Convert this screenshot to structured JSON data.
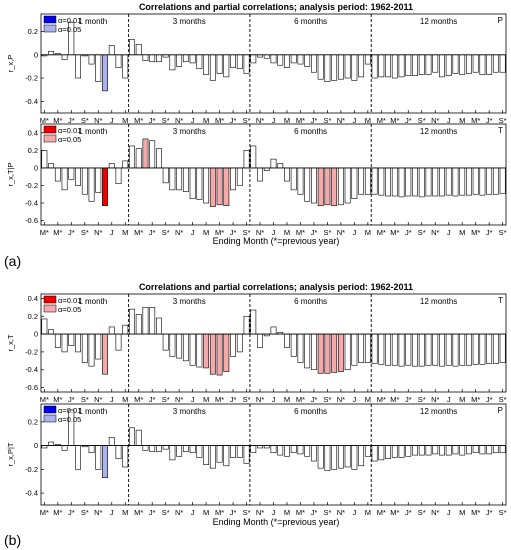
{
  "figure": {
    "subfigures": [
      {
        "label": "(a)",
        "title": "Correlations and partial correlations; analysis period: 1962-2011",
        "xlabel": "Ending Month (*=previous year)"
      },
      {
        "label": "(b)",
        "title": "Correlations and partial correlations; analysis period: 1962-2011",
        "xlabel": "Ending Month (*=previous year)"
      }
    ]
  },
  "colors": {
    "blue_strong": "#0000ee",
    "blue_light": "#aab2ee",
    "red_strong": "#ee0000",
    "red_light": "#f4aaaa",
    "bar_plain": "#ffffff",
    "bar_edge": "#000000"
  },
  "chart_data": [
    {
      "type": "bar",
      "panel": "a-top",
      "title": "Correlations and partial correlations; analysis period: 1962-2011",
      "ylabel": "r_x,P",
      "corner_label": "P",
      "legend": [
        {
          "label": "α=0.01",
          "color": "#0000ee"
        },
        {
          "label": "α=0.05",
          "color": "#aab2ee"
        }
      ],
      "ylim": [
        -0.5,
        0.35
      ],
      "yticks": [
        -0.4,
        -0.2,
        0,
        0.2
      ],
      "ytick_labels": [
        "-0.4",
        "-0.2",
        "0",
        "0.2"
      ],
      "xtick_labels": [
        "M*",
        "M*",
        "J*",
        "S*",
        "N*",
        "J",
        "M",
        "M*",
        "J*",
        "S*",
        "N*",
        "J",
        "M",
        "M*",
        "J*",
        "S*",
        "N*",
        "J",
        "M",
        "M*",
        "J*",
        "S*",
        "N*",
        "J",
        "M"
      ],
      "groups": [
        "1 month",
        "3 months",
        "6 months",
        "12 months"
      ],
      "values": [
        -0.01,
        0.03,
        0.01,
        -0.04,
        0.28,
        -0.2,
        -0.01,
        -0.08,
        -0.23,
        -0.31,
        0.08,
        -0.11,
        -0.2,
        0.13,
        0.09,
        -0.05,
        -0.06,
        -0.06,
        -0.02,
        -0.13,
        -0.1,
        -0.06,
        -0.07,
        -0.12,
        -0.17,
        -0.22,
        -0.16,
        -0.19,
        -0.11,
        -0.12,
        -0.16,
        -0.07,
        -0.02,
        -0.03,
        -0.07,
        -0.09,
        -0.11,
        -0.07,
        -0.08,
        -0.1,
        -0.15,
        -0.21,
        -0.23,
        -0.22,
        -0.21,
        -0.2,
        -0.22,
        -0.19,
        -0.08,
        -0.2,
        -0.19,
        -0.19,
        -0.2,
        -0.19,
        -0.18,
        -0.18,
        -0.17,
        -0.17,
        -0.15,
        -0.19,
        -0.18,
        -0.16,
        -0.17,
        -0.16,
        -0.15,
        -0.17,
        -0.17,
        -0.15,
        -0.15
      ],
      "significance": [
        0,
        0,
        0,
        0,
        0,
        0,
        0,
        0,
        0,
        1,
        0,
        0,
        0,
        0,
        0,
        0,
        0,
        0,
        0,
        0,
        0,
        0,
        0,
        0,
        0,
        0,
        0,
        0,
        0,
        0,
        0,
        0,
        0,
        0,
        0,
        0,
        0,
        0,
        0,
        0,
        0,
        0,
        0,
        0,
        0,
        0,
        0,
        0,
        0,
        0,
        0,
        0,
        0,
        0,
        0,
        0,
        0,
        0,
        0,
        0,
        0,
        0,
        0,
        0,
        0,
        0,
        0,
        0,
        0
      ]
    },
    {
      "type": "bar",
      "panel": "a-bottom",
      "ylabel": "r_x,T|P",
      "corner_label": "T",
      "legend": [
        {
          "label": "α=0.01",
          "color": "#ee0000"
        },
        {
          "label": "α=0.05",
          "color": "#f4aaaa"
        }
      ],
      "ylim": [
        -0.65,
        0.5
      ],
      "yticks": [
        -0.6,
        -0.4,
        -0.2,
        0,
        0.2,
        0.4
      ],
      "ytick_labels": [
        "-0.6",
        "-0.4",
        "-0.2",
        "0",
        "0.2",
        "0.4"
      ],
      "xtick_labels": [
        "M*",
        "M*",
        "J*",
        "S*",
        "N*",
        "J",
        "M",
        "M*",
        "J*",
        "S*",
        "N*",
        "J",
        "M",
        "M*",
        "J*",
        "S*",
        "N*",
        "J",
        "M",
        "M*",
        "J*",
        "S*",
        "N*",
        "J",
        "M"
      ],
      "groups": [
        "1 month",
        "3 months",
        "6 months",
        "12 months"
      ],
      "values": [
        0.2,
        0.05,
        -0.15,
        -0.25,
        -0.13,
        -0.2,
        -0.3,
        -0.38,
        -0.28,
        -0.43,
        0.05,
        -0.18,
        0.08,
        0.25,
        0.22,
        0.33,
        0.31,
        0.22,
        -0.17,
        -0.25,
        -0.25,
        -0.27,
        -0.35,
        -0.36,
        -0.4,
        -0.44,
        -0.42,
        -0.43,
        -0.25,
        -0.2,
        0.2,
        0.25,
        -0.15,
        -0.03,
        0.1,
        0.05,
        -0.15,
        -0.25,
        -0.3,
        -0.38,
        -0.4,
        -0.43,
        -0.42,
        -0.43,
        -0.42,
        -0.4,
        -0.35,
        -0.3,
        -0.3,
        -0.3,
        -0.31,
        -0.32,
        -0.32,
        -0.33,
        -0.32,
        -0.32,
        -0.33,
        -0.32,
        -0.32,
        -0.32,
        -0.31,
        -0.32,
        -0.31,
        -0.31,
        -0.3,
        -0.31,
        -0.3,
        -0.3,
        -0.29
      ],
      "significance": [
        0,
        0,
        0,
        0,
        0,
        0,
        0,
        0,
        0,
        2,
        0,
        0,
        0,
        0,
        0,
        1,
        0,
        0,
        0,
        0,
        0,
        0,
        0,
        0,
        0,
        1,
        1,
        1,
        0,
        0,
        0,
        0,
        0,
        0,
        0,
        0,
        0,
        0,
        0,
        0,
        0,
        1,
        1,
        1,
        0,
        0,
        0,
        0,
        0,
        0,
        0,
        0,
        0,
        0,
        0,
        0,
        0,
        0,
        0,
        0,
        0,
        0,
        0,
        0,
        0,
        0,
        0,
        0,
        0
      ]
    },
    {
      "type": "bar",
      "panel": "b-top",
      "title": "Correlations and partial correlations; analysis period: 1962-2011",
      "ylabel": "r_x,T",
      "corner_label": "T",
      "legend": [
        {
          "label": "α=0.01",
          "color": "#ee0000"
        },
        {
          "label": "α=0.05",
          "color": "#f4aaaa"
        }
      ],
      "ylim": [
        -0.65,
        0.45
      ],
      "yticks": [
        -0.6,
        -0.4,
        -0.2,
        0,
        0.2,
        0.4
      ],
      "ytick_labels": [
        "-0.6",
        "-0.4",
        "-0.2",
        "0",
        "0.2",
        "0.4"
      ],
      "xtick_labels": [
        "M*",
        "M*",
        "J*",
        "S*",
        "N*",
        "J",
        "M",
        "M*",
        "J*",
        "S*",
        "N*",
        "J",
        "M",
        "M*",
        "J*",
        "S*",
        "N*",
        "J",
        "M",
        "M*",
        "J*",
        "S*",
        "N*",
        "J",
        "M"
      ],
      "groups": [
        "1 month",
        "3 months",
        "6 months",
        "12 months"
      ],
      "values": [
        0.17,
        0.05,
        -0.15,
        -0.2,
        -0.13,
        -0.2,
        -0.32,
        -0.36,
        -0.28,
        -0.45,
        0.08,
        -0.18,
        0.1,
        0.28,
        0.22,
        0.3,
        0.3,
        0.18,
        -0.18,
        -0.25,
        -0.27,
        -0.3,
        -0.35,
        -0.37,
        -0.38,
        -0.45,
        -0.46,
        -0.42,
        -0.25,
        -0.2,
        0.2,
        0.27,
        -0.15,
        -0.02,
        0.08,
        0.02,
        -0.15,
        -0.25,
        -0.32,
        -0.38,
        -0.4,
        -0.44,
        -0.44,
        -0.43,
        -0.42,
        -0.4,
        -0.35,
        -0.32,
        -0.32,
        -0.33,
        -0.34,
        -0.35,
        -0.35,
        -0.36,
        -0.35,
        -0.36,
        -0.36,
        -0.35,
        -0.35,
        -0.36,
        -0.35,
        -0.36,
        -0.35,
        -0.35,
        -0.34,
        -0.34,
        -0.33,
        -0.33,
        -0.32
      ],
      "significance": [
        0,
        0,
        0,
        0,
        0,
        0,
        0,
        0,
        0,
        1,
        0,
        0,
        0,
        0,
        0,
        0,
        0,
        0,
        0,
        0,
        0,
        0,
        0,
        0,
        1,
        1,
        1,
        1,
        0,
        0,
        0,
        0,
        0,
        0,
        0,
        0,
        0,
        0,
        0,
        0,
        0,
        1,
        1,
        1,
        1,
        0,
        0,
        0,
        0,
        0,
        0,
        0,
        0,
        0,
        0,
        0,
        0,
        0,
        0,
        0,
        0,
        0,
        0,
        0,
        0,
        0,
        0,
        0,
        0
      ]
    },
    {
      "type": "bar",
      "panel": "b-bottom",
      "ylabel": "r_x,P|T",
      "corner_label": "P",
      "legend": [
        {
          "label": "α=0.01",
          "color": "#0000ee"
        },
        {
          "label": "α=0.05",
          "color": "#aab2ee"
        }
      ],
      "ylim": [
        -0.5,
        0.35
      ],
      "yticks": [
        -0.4,
        -0.2,
        0,
        0.2
      ],
      "ytick_labels": [
        "-0.4",
        "-0.2",
        "0",
        "0.2"
      ],
      "xtick_labels": [
        "M*",
        "M*",
        "J*",
        "S*",
        "N*",
        "J",
        "M",
        "M*",
        "J*",
        "S*",
        "N*",
        "J",
        "M",
        "M*",
        "J*",
        "S*",
        "N*",
        "J",
        "M",
        "M*",
        "J*",
        "S*",
        "N*",
        "J",
        "M"
      ],
      "groups": [
        "1 month",
        "3 months",
        "6 months",
        "12 months"
      ],
      "values": [
        -0.02,
        0.03,
        0.01,
        -0.04,
        0.3,
        -0.2,
        -0.01,
        -0.06,
        -0.2,
        -0.27,
        0.07,
        -0.11,
        -0.18,
        0.15,
        0.13,
        -0.04,
        -0.05,
        -0.05,
        -0.03,
        -0.12,
        -0.09,
        -0.05,
        -0.06,
        -0.1,
        -0.16,
        -0.19,
        -0.14,
        -0.17,
        -0.1,
        -0.1,
        -0.15,
        -0.06,
        -0.02,
        -0.02,
        -0.06,
        -0.08,
        -0.09,
        -0.06,
        -0.07,
        -0.09,
        -0.13,
        -0.19,
        -0.21,
        -0.2,
        -0.19,
        -0.18,
        -0.2,
        -0.17,
        -0.09,
        -0.13,
        -0.12,
        -0.11,
        -0.1,
        -0.1,
        -0.09,
        -0.08,
        -0.08,
        -0.08,
        -0.07,
        -0.08,
        -0.08,
        -0.07,
        -0.08,
        -0.07,
        -0.06,
        -0.07,
        -0.07,
        -0.06,
        -0.06
      ],
      "significance": [
        0,
        0,
        0,
        0,
        0,
        0,
        0,
        0,
        0,
        1,
        0,
        0,
        0,
        0,
        0,
        0,
        0,
        0,
        0,
        0,
        0,
        0,
        0,
        0,
        0,
        0,
        0,
        0,
        0,
        0,
        0,
        0,
        0,
        0,
        0,
        0,
        0,
        0,
        0,
        0,
        0,
        0,
        0,
        0,
        0,
        0,
        0,
        0,
        0,
        0,
        0,
        0,
        0,
        0,
        0,
        0,
        0,
        0,
        0,
        0,
        0,
        0,
        0,
        0,
        0,
        0,
        0,
        0,
        0
      ]
    }
  ]
}
